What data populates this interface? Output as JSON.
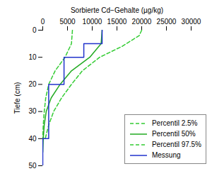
{
  "chart_data": {
    "type": "line",
    "x_label": "Sorbierte Cd−Gehalte (µg/kg)",
    "y_label": "Tiefe (cm)",
    "xlim": [
      0,
      30000
    ],
    "xticks": [
      0,
      5000,
      10000,
      15000,
      20000,
      25000,
      30000
    ],
    "ylim": [
      0,
      50
    ],
    "yticks": [
      0,
      10,
      20,
      30,
      40,
      50
    ],
    "legend": "bottom-right",
    "series": [
      {
        "name": "Percentil 2.5%",
        "color": "#33cc33",
        "line_style": "dashed",
        "x": [
          6000,
          5800,
          4500,
          2500,
          1200,
          600,
          300,
          100,
          0
        ],
        "y": [
          0,
          5,
          10,
          15,
          20,
          25,
          30,
          35,
          40
        ]
      },
      {
        "name": "Percentil 50%",
        "color": "#22aa22",
        "line_style": "solid",
        "x": [
          12000,
          11800,
          9500,
          5800,
          3500,
          1700,
          700,
          300,
          100,
          0
        ],
        "y": [
          0,
          5,
          10,
          15,
          20,
          25,
          30,
          35,
          40,
          45
        ]
      },
      {
        "name": "Percentil 97.5%",
        "color": "#33cc33",
        "line_style": "dashed",
        "x": [
          20000,
          19500,
          16000,
          11500,
          8000,
          5800,
          3800,
          2200,
          1200,
          500
        ],
        "y": [
          0,
          2,
          6,
          10,
          15,
          20,
          25,
          30,
          35,
          40
        ]
      },
      {
        "name": "Messung",
        "color": "#2233cc",
        "line_style": "solid",
        "x": [
          12000,
          12000,
          8300,
          8300,
          4300,
          4300,
          1200,
          1200,
          0,
          0
        ],
        "y": [
          0,
          5,
          5,
          10,
          10,
          20,
          20,
          40,
          40,
          50
        ]
      }
    ]
  }
}
